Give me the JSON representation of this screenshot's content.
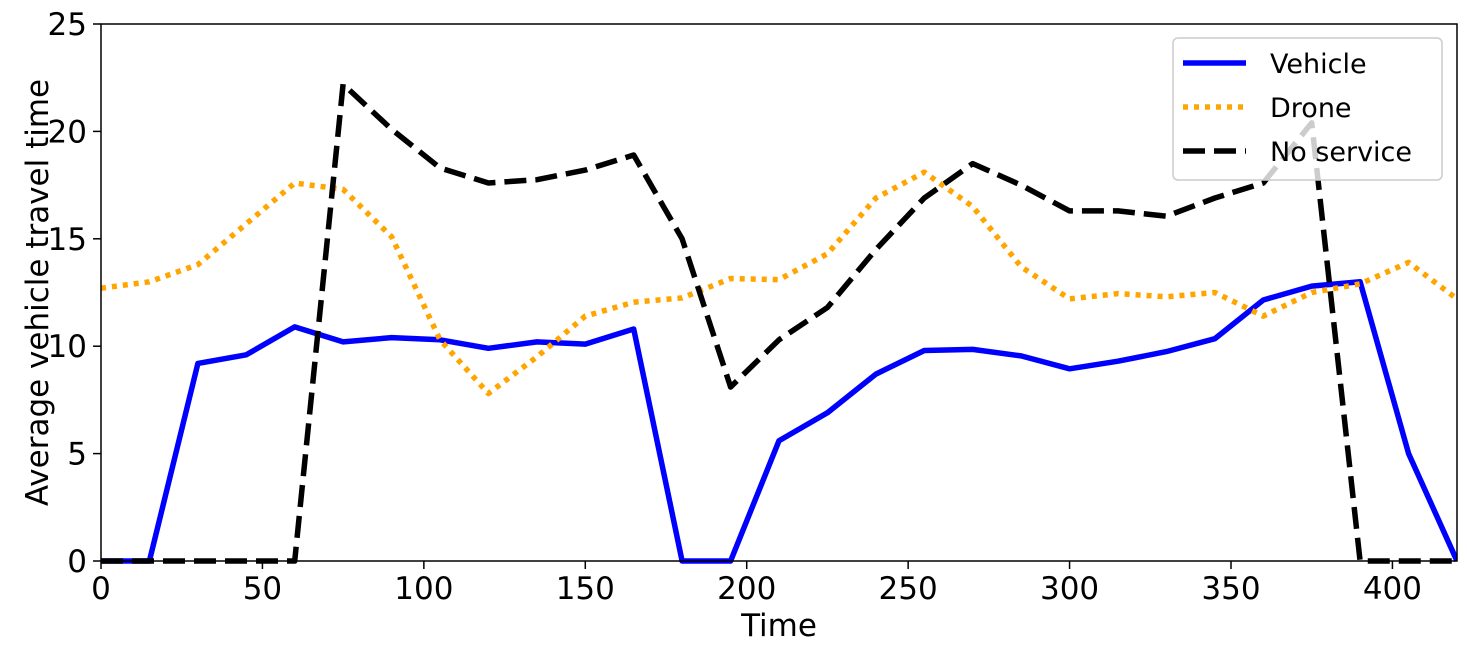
{
  "chart_data": {
    "type": "line",
    "title": "",
    "xlabel": "Time",
    "ylabel": "Average vehicle travel time",
    "xlim": [
      0,
      420
    ],
    "ylim": [
      0,
      25
    ],
    "xticks": [
      "0",
      "50",
      "100",
      "150",
      "200",
      "250",
      "300",
      "350",
      "400"
    ],
    "yticks": [
      "0",
      "5",
      "10",
      "15",
      "20",
      "25"
    ],
    "grid": false,
    "legend_position": "top-right",
    "series": [
      {
        "name": "Vehicle",
        "style": "solid",
        "color": "#0000ff",
        "x": [
          0,
          15,
          30,
          45,
          60,
          75,
          90,
          105,
          120,
          135,
          150,
          165,
          180,
          195,
          210,
          225,
          240,
          255,
          270,
          285,
          300,
          315,
          330,
          345,
          360,
          375,
          390,
          405,
          420
        ],
        "y": [
          0,
          0,
          9.2,
          9.6,
          10.9,
          10.2,
          10.4,
          10.3,
          9.9,
          10.2,
          10.1,
          10.8,
          0,
          0,
          5.6,
          6.9,
          8.7,
          9.8,
          9.85,
          9.55,
          8.95,
          9.3,
          9.75,
          10.35,
          12.15,
          12.8,
          13.0,
          5.0,
          0
        ]
      },
      {
        "name": "Drone",
        "style": "dotted",
        "color": "#ffa500",
        "x": [
          0,
          15,
          30,
          45,
          60,
          75,
          90,
          105,
          120,
          135,
          150,
          165,
          180,
          195,
          210,
          225,
          240,
          255,
          270,
          285,
          300,
          315,
          330,
          345,
          360,
          375,
          390,
          405,
          420
        ],
        "y": [
          12.7,
          13.0,
          13.8,
          15.7,
          17.6,
          17.3,
          15.1,
          10.3,
          7.8,
          9.5,
          11.4,
          12.05,
          12.25,
          13.15,
          13.1,
          14.3,
          16.9,
          18.1,
          16.5,
          13.7,
          12.2,
          12.45,
          12.3,
          12.5,
          11.4,
          12.5,
          12.9,
          13.9,
          12.2
        ]
      },
      {
        "name": "No service",
        "style": "dashed",
        "color": "#000000",
        "x": [
          0,
          15,
          30,
          45,
          60,
          75,
          90,
          105,
          120,
          135,
          150,
          165,
          180,
          195,
          210,
          225,
          240,
          255,
          270,
          285,
          300,
          315,
          330,
          345,
          360,
          375,
          390,
          405,
          420
        ],
        "y": [
          0,
          0,
          0,
          0,
          0,
          22.2,
          20.1,
          18.3,
          17.6,
          17.75,
          18.2,
          18.9,
          15.0,
          8.1,
          10.3,
          11.8,
          14.5,
          16.9,
          18.5,
          17.5,
          16.3,
          16.3,
          16.05,
          16.9,
          17.6,
          20.4,
          0,
          0,
          0
        ]
      }
    ]
  }
}
